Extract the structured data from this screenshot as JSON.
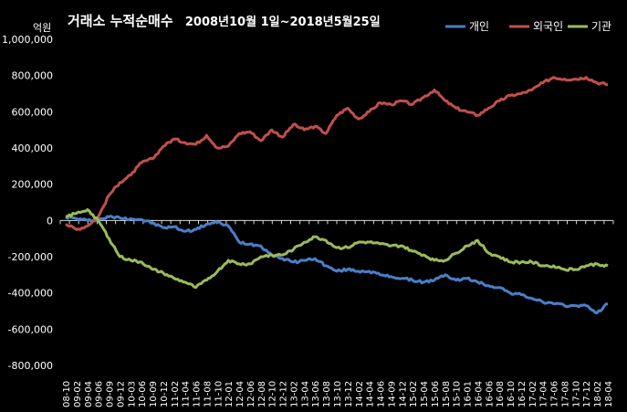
{
  "chart_data": {
    "type": "line",
    "title": "거래소 누적순매수",
    "subtitle": "2008년10월 1일~2018년5월25일",
    "ylabel": "억원",
    "ylim": [
      -800000,
      1000000
    ],
    "yticks": [
      -800000,
      -600000,
      -400000,
      -200000,
      0,
      200000,
      400000,
      600000,
      800000,
      1000000
    ],
    "ytick_labels": [
      "-800,000",
      "-600,000",
      "-400,000",
      "-200,000",
      "0",
      "200,000",
      "400,000",
      "600,000",
      "800,000",
      "1,000,000"
    ],
    "x_categories": [
      "08-10",
      "09-02",
      "09-04",
      "09-06",
      "09-09",
      "09-12",
      "10-03",
      "10-06",
      "10-09",
      "10-12",
      "11-02",
      "11-04",
      "11-06",
      "11-08",
      "11-10",
      "12-01",
      "12-04",
      "12-06",
      "12-08",
      "12-10",
      "12-12",
      "13-02",
      "13-04",
      "13-06",
      "13-08",
      "13-10",
      "13-12",
      "14-02",
      "14-04",
      "14-06",
      "14-09",
      "14-12",
      "15-02",
      "15-04",
      "15-06",
      "15-08",
      "15-10",
      "16-01",
      "16-04",
      "16-06",
      "16-08",
      "16-10",
      "16-12",
      "17-02",
      "17-04",
      "17-06",
      "17-08",
      "17-10",
      "17-12",
      "18-02",
      "18-04"
    ],
    "legend_position": "top-right",
    "grid": false,
    "series": [
      {
        "name": "개인",
        "color": "#4a7fc8",
        "values": [
          20000,
          10000,
          0,
          5000,
          20000,
          15000,
          10000,
          5000,
          -15000,
          -40000,
          -35000,
          -60000,
          -50000,
          -20000,
          -10000,
          -30000,
          -120000,
          -130000,
          -140000,
          -190000,
          -210000,
          -230000,
          -220000,
          -210000,
          -250000,
          -280000,
          -270000,
          -280000,
          -280000,
          -300000,
          -310000,
          -320000,
          -330000,
          -340000,
          -330000,
          -300000,
          -330000,
          -320000,
          -340000,
          -360000,
          -370000,
          -400000,
          -410000,
          -430000,
          -450000,
          -460000,
          -470000,
          -470000,
          -470000,
          -510000,
          -460000
        ]
      },
      {
        "name": "외국인",
        "color": "#c0504d",
        "values": [
          -20000,
          -50000,
          -30000,
          20000,
          140000,
          210000,
          250000,
          320000,
          340000,
          410000,
          450000,
          430000,
          420000,
          470000,
          400000,
          410000,
          480000,
          490000,
          440000,
          500000,
          460000,
          530000,
          500000,
          520000,
          480000,
          580000,
          620000,
          560000,
          600000,
          650000,
          640000,
          660000,
          640000,
          680000,
          720000,
          660000,
          620000,
          600000,
          580000,
          620000,
          660000,
          690000,
          700000,
          720000,
          760000,
          790000,
          780000,
          780000,
          790000,
          760000,
          750000
        ]
      },
      {
        "name": "기관",
        "color": "#9bbb59",
        "values": [
          20000,
          40000,
          60000,
          0,
          -100000,
          -200000,
          -220000,
          -230000,
          -270000,
          -290000,
          -320000,
          -340000,
          -370000,
          -330000,
          -280000,
          -220000,
          -240000,
          -240000,
          -200000,
          -190000,
          -190000,
          -160000,
          -120000,
          -90000,
          -110000,
          -150000,
          -150000,
          -120000,
          -120000,
          -130000,
          -140000,
          -140000,
          -170000,
          -190000,
          -220000,
          -220000,
          -180000,
          -140000,
          -110000,
          -180000,
          -200000,
          -230000,
          -230000,
          -230000,
          -250000,
          -250000,
          -270000,
          -270000,
          -250000,
          -240000,
          -250000
        ]
      }
    ]
  }
}
